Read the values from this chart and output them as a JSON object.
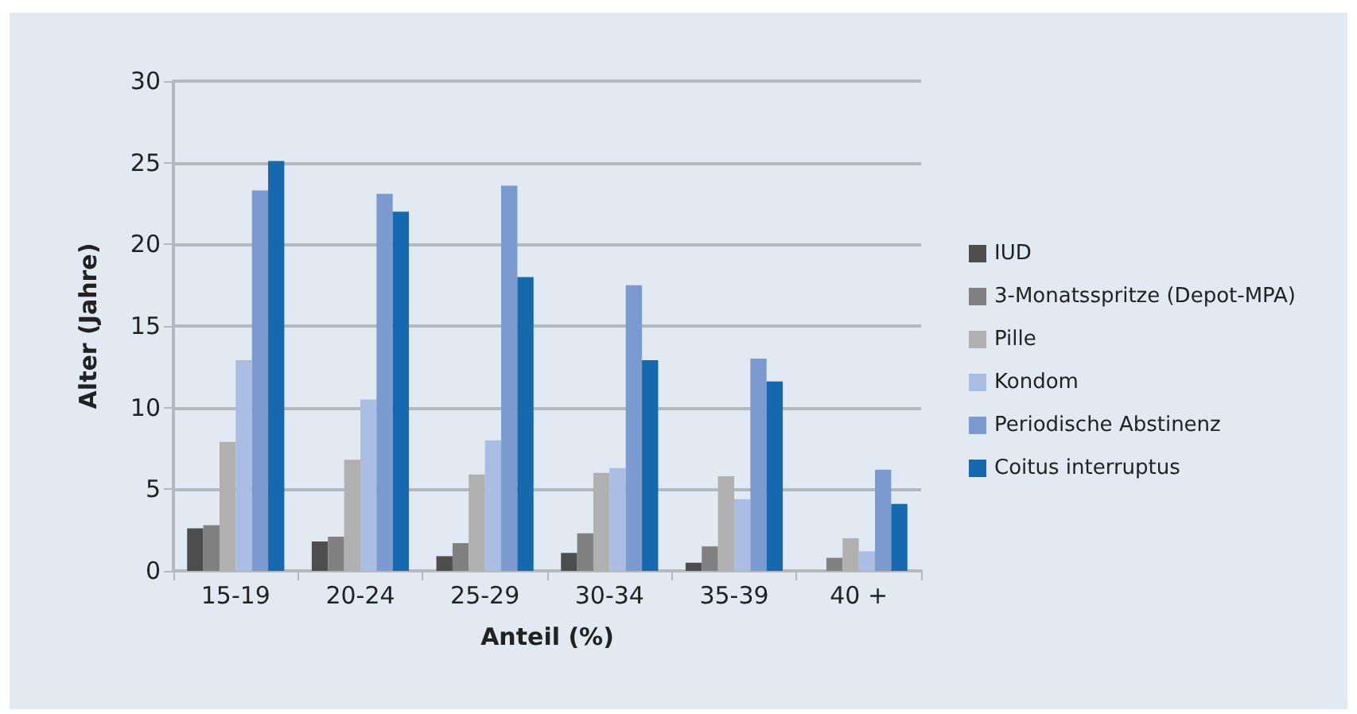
{
  "chart_data": {
    "type": "bar",
    "xlabel": "Anteil (%)",
    "ylabel": "Alter (Jahre)",
    "categories": [
      "15-19",
      "20-24",
      "25-29",
      "30-34",
      "35-39",
      "40 +"
    ],
    "series": [
      {
        "name": "IUD",
        "color": "#4d4d4d",
        "values": [
          2.6,
          1.8,
          0.9,
          1.1,
          0.5,
          0
        ]
      },
      {
        "name": "3-Monatsspritze (Depot-MPA)",
        "color": "#808080",
        "values": [
          2.8,
          2.1,
          1.7,
          2.3,
          1.5,
          0.8
        ]
      },
      {
        "name": "Pille",
        "color": "#b0b0b0",
        "values": [
          7.9,
          6.8,
          5.9,
          6.0,
          5.8,
          2.0
        ]
      },
      {
        "name": "Kondom",
        "color": "#aabde3",
        "values": [
          12.9,
          10.5,
          8.0,
          6.3,
          4.4,
          1.2
        ]
      },
      {
        "name": "Periodische Abstinenz",
        "color": "#7b9bd0",
        "values": [
          23.3,
          23.1,
          23.6,
          17.5,
          13.0,
          6.2
        ]
      },
      {
        "name": "Coitus interruptus",
        "color": "#1669ae",
        "values": [
          25.1,
          22.0,
          18.0,
          12.9,
          11.6,
          4.1
        ]
      }
    ],
    "ylim": [
      0,
      30
    ],
    "yticks": [
      0,
      5,
      10,
      15,
      20,
      25,
      30
    ],
    "grid": "y",
    "legend": "right"
  }
}
